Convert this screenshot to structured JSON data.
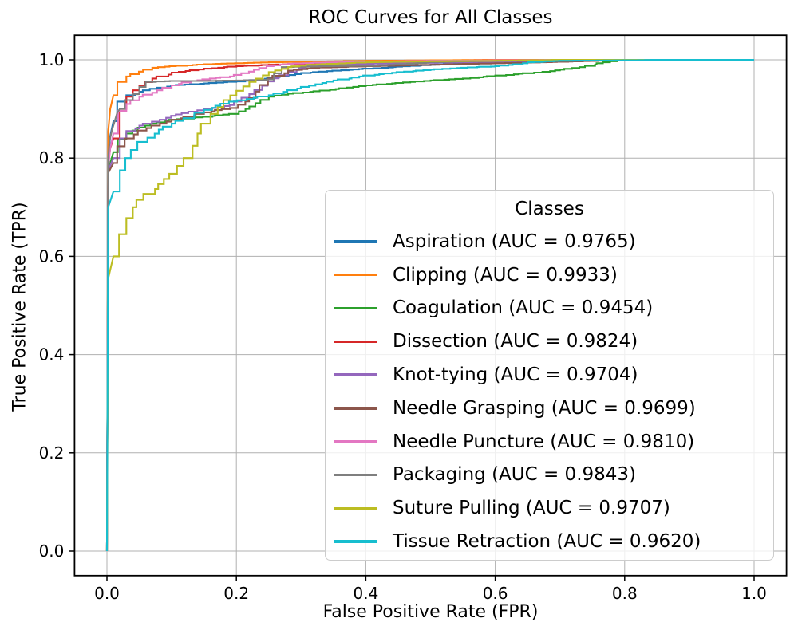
{
  "chart_data": {
    "type": "line",
    "subtype": "roc-curves",
    "title": "ROC Curves for All Classes",
    "xlabel": "False Positive Rate (FPR)",
    "ylabel": "True Positive Rate (TPR)",
    "legend_title": "Classes",
    "legend_position": "lower right",
    "grid": true,
    "xlim": [
      -0.05,
      1.05
    ],
    "ylim": [
      -0.05,
      1.05
    ],
    "x_ticks": [
      0.0,
      0.2,
      0.4,
      0.6,
      0.8,
      1.0
    ],
    "y_ticks": [
      0.0,
      0.2,
      0.4,
      0.6,
      0.8,
      1.0
    ],
    "grid_color": "#b0b0b0",
    "spine_color": "#000000",
    "legend_border_color": "#cccccc",
    "series": [
      {
        "name": "Aspiration",
        "auc": "0.9765",
        "label": "Aspiration (AUC = 0.9765)",
        "color": "#1f77b4",
        "points": [
          [
            0,
            0
          ],
          [
            0.002,
            0.8
          ],
          [
            0.005,
            0.845
          ],
          [
            0.01,
            0.875
          ],
          [
            0.02,
            0.915
          ],
          [
            0.03,
            0.928
          ],
          [
            0.05,
            0.935
          ],
          [
            0.07,
            0.941
          ],
          [
            0.1,
            0.948
          ],
          [
            0.15,
            0.952
          ],
          [
            0.2,
            0.956
          ],
          [
            0.25,
            0.963
          ],
          [
            0.3,
            0.973
          ],
          [
            0.35,
            0.978
          ],
          [
            0.4,
            0.982
          ],
          [
            0.45,
            0.986
          ],
          [
            0.5,
            0.99
          ],
          [
            0.55,
            0.993
          ],
          [
            0.6,
            0.995
          ],
          [
            0.7,
            0.998
          ],
          [
            0.8,
            1.0
          ],
          [
            1.0,
            1.0
          ]
        ]
      },
      {
        "name": "Clipping",
        "auc": "0.9933",
        "label": "Clipping (AUC = 0.9933)",
        "color": "#ff7f0e",
        "points": [
          [
            0,
            0
          ],
          [
            0.002,
            0.855
          ],
          [
            0.005,
            0.9
          ],
          [
            0.01,
            0.928
          ],
          [
            0.02,
            0.955
          ],
          [
            0.03,
            0.966
          ],
          [
            0.05,
            0.976
          ],
          [
            0.07,
            0.984
          ],
          [
            0.1,
            0.987
          ],
          [
            0.15,
            0.991
          ],
          [
            0.2,
            0.993
          ],
          [
            0.25,
            0.995
          ],
          [
            0.3,
            0.996
          ],
          [
            0.4,
            0.998
          ],
          [
            0.5,
            0.999
          ],
          [
            0.6,
            1.0
          ],
          [
            1.0,
            1.0
          ]
        ]
      },
      {
        "name": "Coagulation",
        "auc": "0.9454",
        "label": "Coagulation (AUC = 0.9454)",
        "color": "#2ca02c",
        "points": [
          [
            0,
            0
          ],
          [
            0.002,
            0.775
          ],
          [
            0.005,
            0.79
          ],
          [
            0.01,
            0.812
          ],
          [
            0.02,
            0.838
          ],
          [
            0.03,
            0.85
          ],
          [
            0.05,
            0.862
          ],
          [
            0.07,
            0.87
          ],
          [
            0.1,
            0.878
          ],
          [
            0.15,
            0.884
          ],
          [
            0.19,
            0.89
          ],
          [
            0.22,
            0.905
          ],
          [
            0.25,
            0.925
          ],
          [
            0.28,
            0.931
          ],
          [
            0.32,
            0.936
          ],
          [
            0.36,
            0.942
          ],
          [
            0.4,
            0.948
          ],
          [
            0.45,
            0.953
          ],
          [
            0.5,
            0.958
          ],
          [
            0.55,
            0.962
          ],
          [
            0.6,
            0.968
          ],
          [
            0.66,
            0.974
          ],
          [
            0.7,
            0.98
          ],
          [
            0.73,
            0.985
          ],
          [
            0.76,
            0.993
          ],
          [
            0.78,
            0.997
          ],
          [
            0.8,
            1.0
          ],
          [
            1.0,
            1.0
          ]
        ]
      },
      {
        "name": "Dissection",
        "auc": "0.9824",
        "label": "Dissection (AUC = 0.9824)",
        "color": "#d62728",
        "points": [
          [
            0,
            0
          ],
          [
            0.002,
            0.79
          ],
          [
            0.005,
            0.82
          ],
          [
            0.01,
            0.84
          ],
          [
            0.02,
            0.9
          ],
          [
            0.03,
            0.925
          ],
          [
            0.04,
            0.938
          ],
          [
            0.05,
            0.947
          ],
          [
            0.07,
            0.962
          ],
          [
            0.1,
            0.974
          ],
          [
            0.15,
            0.982
          ],
          [
            0.2,
            0.987
          ],
          [
            0.25,
            0.99
          ],
          [
            0.3,
            0.992
          ],
          [
            0.4,
            0.994
          ],
          [
            0.5,
            0.996
          ],
          [
            0.6,
            0.997
          ],
          [
            0.7,
            0.998
          ],
          [
            0.8,
            1.0
          ],
          [
            1.0,
            1.0
          ]
        ]
      },
      {
        "name": "Knot-tying",
        "auc": "0.9704",
        "label": "Knot-tying (AUC = 0.9704)",
        "color": "#9467bd",
        "points": [
          [
            0,
            0
          ],
          [
            0.002,
            0.775
          ],
          [
            0.01,
            0.8
          ],
          [
            0.02,
            0.84
          ],
          [
            0.03,
            0.855
          ],
          [
            0.05,
            0.866
          ],
          [
            0.07,
            0.874
          ],
          [
            0.1,
            0.886
          ],
          [
            0.15,
            0.9
          ],
          [
            0.19,
            0.908
          ],
          [
            0.22,
            0.93
          ],
          [
            0.25,
            0.956
          ],
          [
            0.28,
            0.975
          ],
          [
            0.31,
            0.988
          ],
          [
            0.35,
            0.991
          ],
          [
            0.45,
            0.993
          ],
          [
            0.55,
            0.995
          ],
          [
            0.65,
            0.997
          ],
          [
            0.75,
            0.999
          ],
          [
            0.8,
            1.0
          ],
          [
            1.0,
            1.0
          ]
        ]
      },
      {
        "name": "Needle Grasping",
        "auc": "0.9699",
        "label": "Needle Grasping (AUC = 0.9699)",
        "color": "#8c564b",
        "points": [
          [
            0,
            0
          ],
          [
            0.002,
            0.77
          ],
          [
            0.01,
            0.79
          ],
          [
            0.02,
            0.824
          ],
          [
            0.03,
            0.84
          ],
          [
            0.05,
            0.856
          ],
          [
            0.07,
            0.866
          ],
          [
            0.1,
            0.878
          ],
          [
            0.15,
            0.893
          ],
          [
            0.19,
            0.902
          ],
          [
            0.22,
            0.922
          ],
          [
            0.25,
            0.962
          ],
          [
            0.28,
            0.978
          ],
          [
            0.32,
            0.984
          ],
          [
            0.4,
            0.987
          ],
          [
            0.5,
            0.99
          ],
          [
            0.6,
            0.993
          ],
          [
            0.7,
            0.996
          ],
          [
            0.8,
            1.0
          ],
          [
            1.0,
            1.0
          ]
        ]
      },
      {
        "name": "Needle Puncture",
        "auc": "0.9810",
        "label": "Needle Puncture (AUC = 0.9810)",
        "color": "#e377c2",
        "points": [
          [
            0,
            0
          ],
          [
            0.002,
            0.78
          ],
          [
            0.005,
            0.82
          ],
          [
            0.01,
            0.85
          ],
          [
            0.02,
            0.896
          ],
          [
            0.03,
            0.91
          ],
          [
            0.05,
            0.925
          ],
          [
            0.07,
            0.933
          ],
          [
            0.1,
            0.948
          ],
          [
            0.13,
            0.957
          ],
          [
            0.16,
            0.962
          ],
          [
            0.19,
            0.966
          ],
          [
            0.22,
            0.976
          ],
          [
            0.25,
            0.987
          ],
          [
            0.28,
            0.992
          ],
          [
            0.32,
            0.994
          ],
          [
            0.4,
            0.996
          ],
          [
            0.5,
            0.998
          ],
          [
            0.6,
            0.999
          ],
          [
            0.7,
            1.0
          ],
          [
            1.0,
            1.0
          ]
        ]
      },
      {
        "name": "Packaging",
        "auc": "0.9843",
        "label": "Packaging (AUC = 0.9843)",
        "color": "#7f7f7f",
        "points": [
          [
            0,
            0
          ],
          [
            0.002,
            0.8
          ],
          [
            0.004,
            0.835
          ],
          [
            0.008,
            0.858
          ],
          [
            0.012,
            0.875
          ],
          [
            0.016,
            0.893
          ],
          [
            0.02,
            0.9
          ],
          [
            0.03,
            0.918
          ],
          [
            0.04,
            0.93
          ],
          [
            0.05,
            0.945
          ],
          [
            0.06,
            0.955
          ],
          [
            0.1,
            0.957
          ],
          [
            0.15,
            0.957
          ],
          [
            0.2,
            0.958
          ],
          [
            0.25,
            0.96
          ],
          [
            0.27,
            0.985
          ],
          [
            0.33,
            0.987
          ],
          [
            0.4,
            0.988
          ],
          [
            0.45,
            0.991
          ],
          [
            0.5,
            0.995
          ],
          [
            0.55,
            0.997
          ],
          [
            0.6,
            0.998
          ],
          [
            0.7,
            0.999
          ],
          [
            0.75,
            1.0
          ],
          [
            1.0,
            1.0
          ]
        ]
      },
      {
        "name": "Suture Pulling",
        "auc": "0.9707",
        "label": "Suture Pulling (AUC = 0.9707)",
        "color": "#bcbd22",
        "points": [
          [
            0,
            0
          ],
          [
            0.002,
            0.555
          ],
          [
            0.01,
            0.6
          ],
          [
            0.02,
            0.645
          ],
          [
            0.03,
            0.678
          ],
          [
            0.04,
            0.7
          ],
          [
            0.05,
            0.715
          ],
          [
            0.06,
            0.727
          ],
          [
            0.08,
            0.747
          ],
          [
            0.1,
            0.768
          ],
          [
            0.12,
            0.8
          ],
          [
            0.14,
            0.85
          ],
          [
            0.16,
            0.89
          ],
          [
            0.18,
            0.918
          ],
          [
            0.2,
            0.937
          ],
          [
            0.22,
            0.955
          ],
          [
            0.25,
            0.975
          ],
          [
            0.28,
            0.985
          ],
          [
            0.31,
            0.99
          ],
          [
            0.4,
            0.995
          ],
          [
            0.5,
            0.997
          ],
          [
            0.6,
            0.998
          ],
          [
            0.7,
            1.0
          ],
          [
            1.0,
            1.0
          ]
        ]
      },
      {
        "name": "Tissue Retraction",
        "auc": "0.9620",
        "label": "Tissue Retraction (AUC = 0.9620)",
        "color": "#17becf",
        "points": [
          [
            0,
            0
          ],
          [
            0.002,
            0.7
          ],
          [
            0.01,
            0.732
          ],
          [
            0.02,
            0.775
          ],
          [
            0.03,
            0.8
          ],
          [
            0.05,
            0.833
          ],
          [
            0.08,
            0.858
          ],
          [
            0.1,
            0.87
          ],
          [
            0.15,
            0.898
          ],
          [
            0.19,
            0.915
          ],
          [
            0.25,
            0.928
          ],
          [
            0.3,
            0.945
          ],
          [
            0.35,
            0.958
          ],
          [
            0.4,
            0.968
          ],
          [
            0.45,
            0.975
          ],
          [
            0.5,
            0.98
          ],
          [
            0.55,
            0.984
          ],
          [
            0.6,
            0.987
          ],
          [
            0.63,
            0.991
          ],
          [
            0.65,
            0.995
          ],
          [
            0.68,
            0.997
          ],
          [
            0.7,
            0.998
          ],
          [
            0.8,
            0.999
          ],
          [
            0.85,
            1.0
          ],
          [
            1.0,
            1.0
          ]
        ]
      }
    ]
  }
}
